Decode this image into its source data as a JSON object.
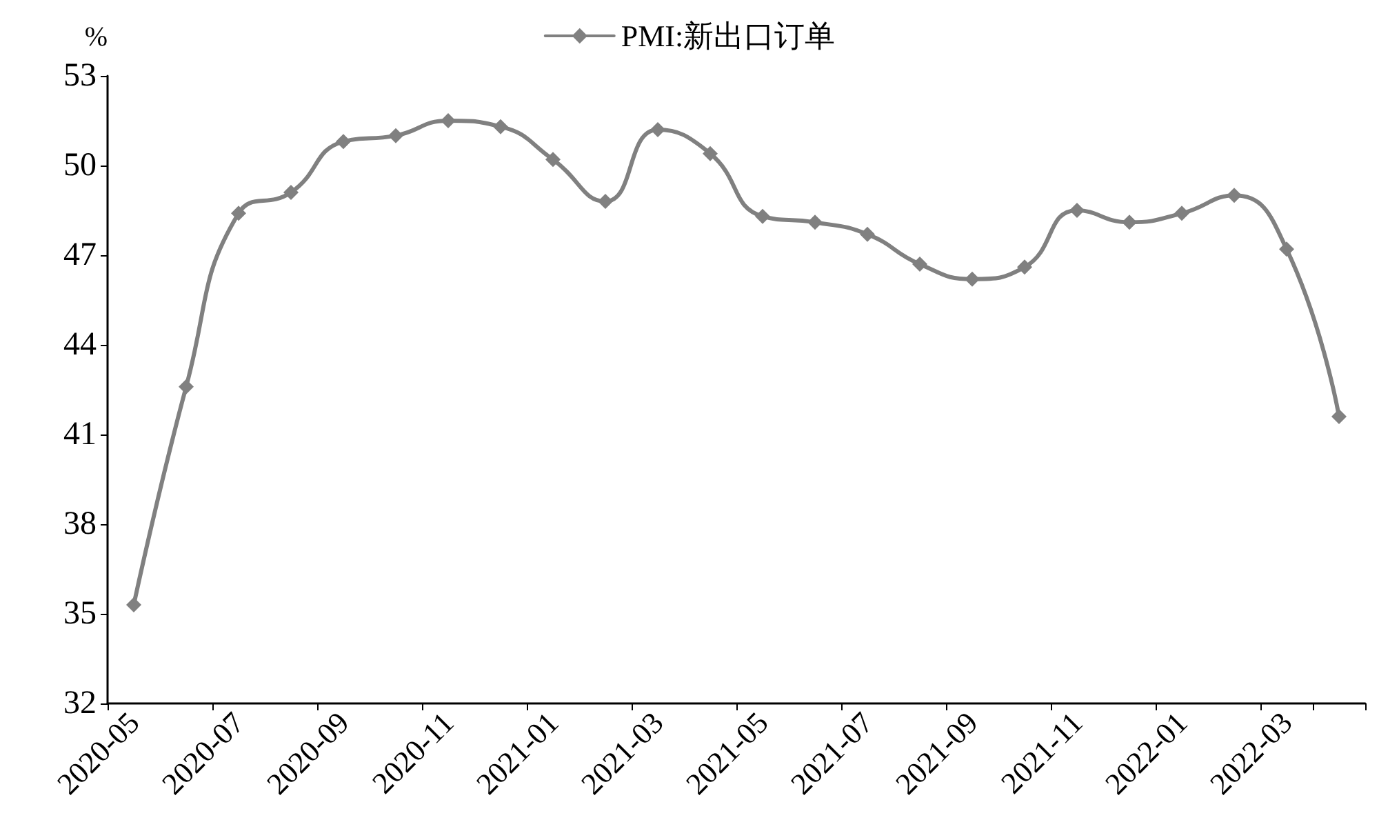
{
  "chart_data": {
    "type": "line",
    "ylabel": "%",
    "categories": [
      "2020-05",
      null,
      "2020-07",
      null,
      "2020-09",
      null,
      "2020-11",
      null,
      "2021-01",
      null,
      "2021-03",
      null,
      "2021-05",
      null,
      "2021-07",
      null,
      "2021-09",
      null,
      "2021-11",
      null,
      "2022-01",
      null,
      "2022-03",
      null
    ],
    "series": [
      {
        "name": "PMI:新出口订单",
        "color": "#808080",
        "values": [
          35.3,
          42.6,
          48.4,
          49.1,
          50.8,
          51.0,
          51.5,
          51.3,
          50.2,
          48.8,
          51.2,
          50.4,
          48.3,
          48.1,
          47.7,
          46.7,
          46.2,
          46.6,
          48.5,
          48.1,
          48.4,
          49.0,
          47.2,
          41.6
        ]
      }
    ],
    "ylim": [
      32,
      53
    ],
    "yticks": [
      32,
      35,
      38,
      41,
      44,
      47,
      50,
      53
    ],
    "grid": false,
    "legend": "top",
    "marker": "diamond",
    "line_style": "solid"
  }
}
